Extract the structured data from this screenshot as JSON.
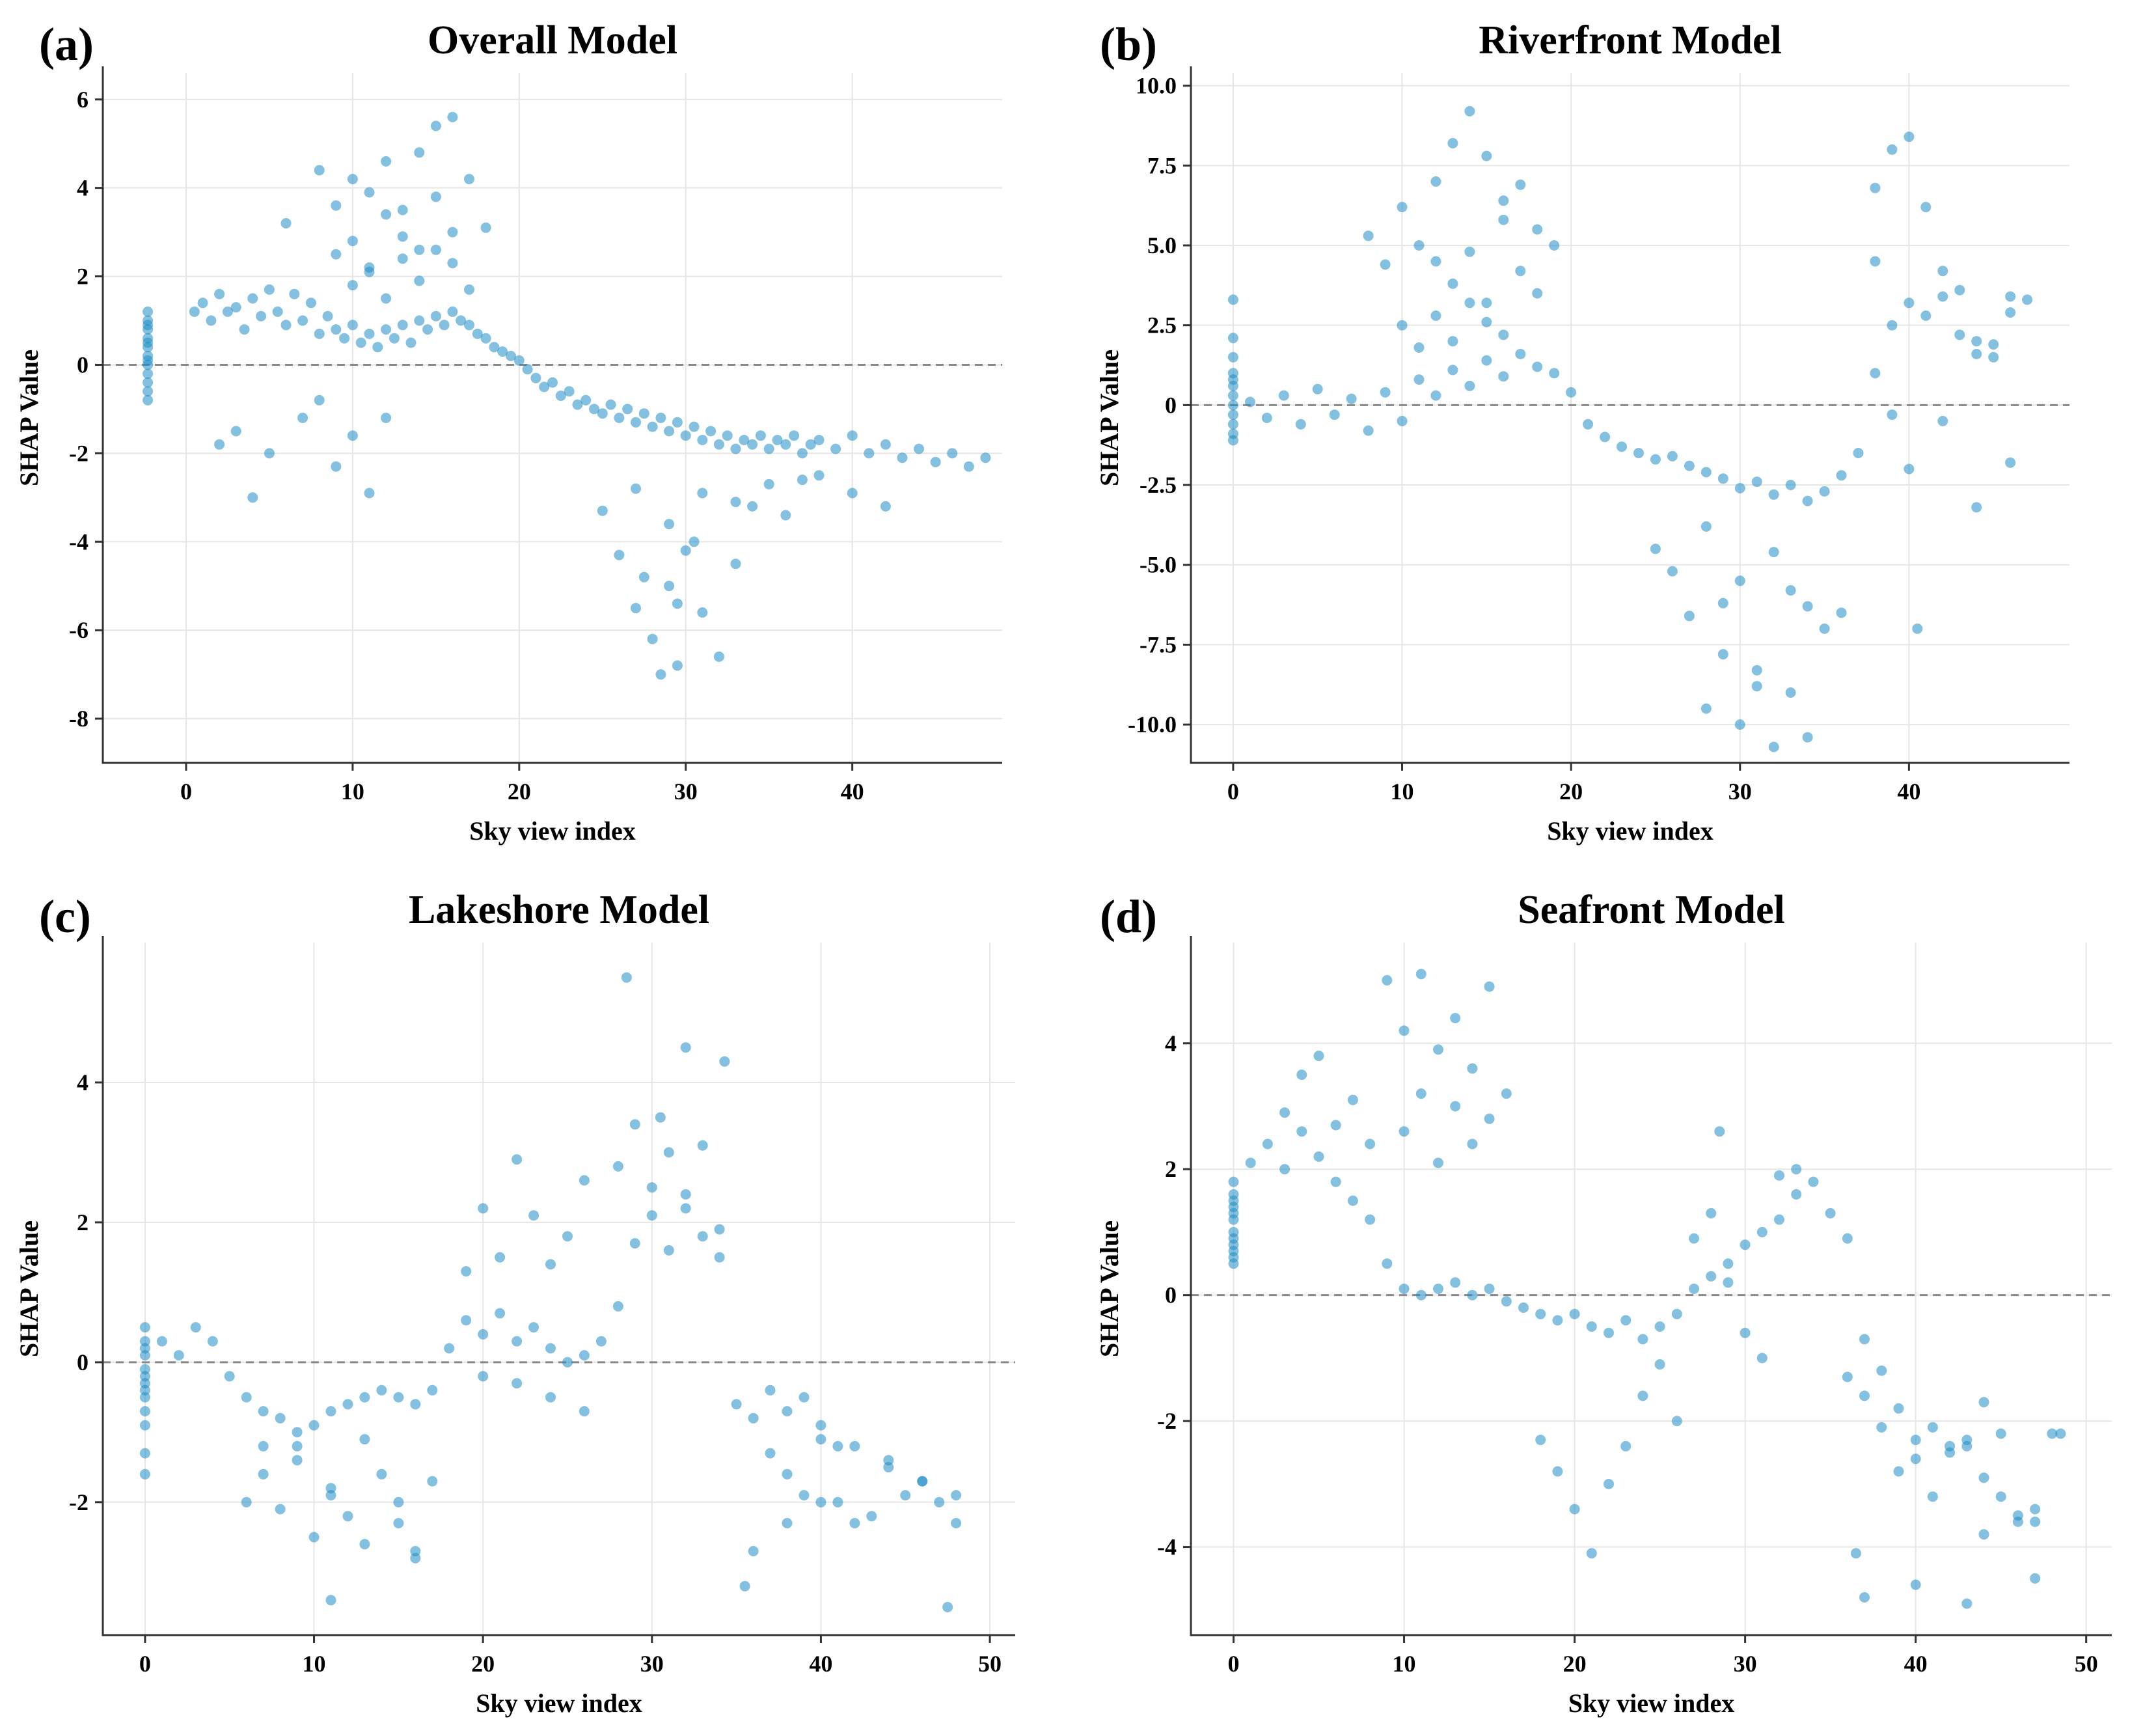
{
  "figure": {
    "point_color": "#1f8dc4"
  },
  "chart_data": [
    {
      "type": "scatter",
      "panel_label": "(a)",
      "title": "Overall Model",
      "xlabel": "Sky view index",
      "ylabel": "SHAP Value",
      "xlim": [
        -5,
        49
      ],
      "ylim": [
        -9,
        6.6
      ],
      "xticks": [
        0,
        10,
        20,
        30,
        40
      ],
      "yticks": [
        -8,
        -6,
        -4,
        -2,
        0,
        2,
        4,
        6
      ],
      "ytick_labels": [
        "-8",
        "-6",
        "-4",
        "-2",
        "0",
        "2",
        "4",
        "6"
      ],
      "grid": true,
      "reference_line_y": 0,
      "x": [
        -2.3,
        -2.3,
        -2.3,
        -2.3,
        -2.3,
        -2.3,
        -2.3,
        -2.3,
        -2.3,
        -2.3,
        -2.3,
        -2.3,
        -2.3,
        -2.3,
        0.5,
        1.0,
        1.5,
        2.0,
        2.5,
        3.0,
        3.5,
        4.0,
        4.5,
        5.0,
        5.5,
        6.0,
        6.5,
        7.0,
        7.5,
        8.0,
        8.5,
        9.0,
        9.5,
        10.0,
        10.5,
        11.0,
        11.5,
        12.0,
        12.5,
        13.0,
        13.5,
        14.0,
        14.5,
        15.0,
        15.5,
        16.0,
        16.5,
        17.0,
        17.5,
        18.0,
        18.5,
        19.0,
        19.5,
        20.0,
        20.5,
        21.0,
        21.5,
        22.0,
        22.5,
        23.0,
        23.5,
        24.0,
        24.5,
        25.0,
        25.5,
        26.0,
        26.5,
        27.0,
        27.5,
        28.0,
        28.5,
        29.0,
        29.5,
        30.0,
        30.5,
        31.0,
        31.5,
        32.0,
        32.5,
        33.0,
        33.5,
        34.0,
        34.5,
        35.0,
        35.5,
        36.0,
        36.5,
        37.0,
        37.5,
        38.0,
        39.0,
        40.0,
        41.0,
        42.0,
        43.0,
        44.0,
        45.0,
        46.0,
        47.0,
        48.0,
        6,
        8,
        9,
        10,
        11,
        12,
        13,
        14,
        15,
        16,
        17,
        18,
        9,
        10,
        11,
        12,
        13,
        14,
        15,
        16,
        10,
        11,
        12,
        13,
        14,
        15,
        16,
        17,
        3,
        5,
        7,
        9,
        11,
        2,
        4,
        8,
        10,
        12,
        26,
        27,
        28,
        28.5,
        29,
        29.5,
        30,
        31,
        32,
        33,
        25,
        27,
        29,
        31,
        33,
        35,
        37,
        40,
        42,
        38,
        36,
        34,
        30.5,
        27.5,
        29.5
      ],
      "y": [
        1.2,
        1.0,
        0.8,
        0.6,
        0.4,
        0.2,
        0.0,
        -0.2,
        -0.4,
        -0.6,
        -0.8,
        0.9,
        0.5,
        0.1,
        1.2,
        1.4,
        1.0,
        1.6,
        1.2,
        1.3,
        0.8,
        1.5,
        1.1,
        1.7,
        1.2,
        0.9,
        1.6,
        1.0,
        1.4,
        0.7,
        1.1,
        0.8,
        0.6,
        0.9,
        0.5,
        0.7,
        0.4,
        0.8,
        0.6,
        0.9,
        0.5,
        1.0,
        0.8,
        1.1,
        0.9,
        1.2,
        1.0,
        0.9,
        0.7,
        0.6,
        0.4,
        0.3,
        0.2,
        0.1,
        -0.1,
        -0.3,
        -0.5,
        -0.4,
        -0.7,
        -0.6,
        -0.9,
        -0.8,
        -1.0,
        -1.1,
        -0.9,
        -1.2,
        -1.0,
        -1.3,
        -1.1,
        -1.4,
        -1.2,
        -1.5,
        -1.3,
        -1.6,
        -1.4,
        -1.7,
        -1.5,
        -1.8,
        -1.6,
        -1.9,
        -1.7,
        -1.8,
        -1.6,
        -1.9,
        -1.7,
        -1.8,
        -1.6,
        -2.0,
        -1.8,
        -1.7,
        -1.9,
        -1.6,
        -2.0,
        -1.8,
        -2.1,
        -1.9,
        -2.2,
        -2.0,
        -2.3,
        -2.1,
        3.2,
        4.4,
        3.6,
        4.2,
        3.9,
        4.6,
        3.5,
        4.8,
        5.4,
        5.6,
        4.2,
        3.1,
        2.5,
        2.8,
        2.2,
        3.4,
        2.9,
        2.6,
        3.8,
        3.0,
        1.8,
        2.1,
        1.5,
        2.4,
        1.9,
        2.6,
        2.3,
        1.7,
        -1.5,
        -2.0,
        -1.2,
        -2.3,
        -2.9,
        -1.8,
        -3.0,
        -0.8,
        -1.6,
        -1.2,
        -4.3,
        -5.5,
        -6.2,
        -7.0,
        -5.0,
        -6.8,
        -4.2,
        -5.6,
        -6.6,
        -4.5,
        -3.3,
        -2.8,
        -3.6,
        -2.9,
        -3.1,
        -2.7,
        -2.6,
        -2.9,
        -3.2,
        -2.5,
        -3.4,
        -3.2,
        -4.0,
        -4.8,
        -5.4
      ]
    },
    {
      "type": "scatter",
      "panel_label": "(b)",
      "title": "Riverfront Model",
      "xlabel": "Sky view index",
      "ylabel": "SHAP Value",
      "xlim": [
        -2.5,
        49.5
      ],
      "ylim": [
        -11.2,
        10.4
      ],
      "xticks": [
        0,
        10,
        20,
        30,
        40
      ],
      "yticks": [
        -10.0,
        -7.5,
        -5.0,
        -2.5,
        0,
        2.5,
        5.0,
        7.5,
        10.0
      ],
      "ytick_labels": [
        "-10.0",
        "-7.5",
        "-5.0",
        "-2.5",
        "0",
        "2.5",
        "5.0",
        "7.5",
        "10.0"
      ],
      "grid": true,
      "reference_line_y": 0,
      "x": [
        0,
        0,
        0,
        0,
        0,
        0,
        0,
        0,
        0,
        0,
        0,
        0,
        1,
        2,
        3,
        4,
        5,
        6,
        7,
        8,
        9,
        10,
        11,
        12,
        13,
        14,
        15,
        16,
        17,
        18,
        19,
        20,
        21,
        22,
        23,
        24,
        25,
        26,
        27,
        28,
        29,
        30,
        31,
        32,
        33,
        34,
        35,
        36,
        37,
        38,
        39,
        40,
        41,
        42,
        43,
        44,
        45,
        46,
        47,
        10,
        11,
        12,
        13,
        14,
        15,
        16,
        17,
        18,
        12,
        13,
        14,
        15,
        16,
        17,
        18,
        19,
        8,
        9,
        10,
        11,
        12,
        13,
        14,
        15,
        16,
        25,
        26,
        27,
        28,
        29,
        30,
        31,
        32,
        33,
        34,
        35,
        36,
        28,
        29,
        30,
        31,
        32,
        33,
        34,
        38,
        39,
        40,
        41,
        42,
        43,
        44,
        45,
        46,
        40,
        42,
        44,
        46,
        38,
        39,
        40.5
      ],
      "y": [
        3.3,
        2.1,
        1.5,
        1.0,
        0.6,
        0.3,
        0.0,
        -0.3,
        -0.6,
        -0.9,
        -1.1,
        0.8,
        0.1,
        -0.4,
        0.3,
        -0.6,
        0.5,
        -0.3,
        0.2,
        -0.8,
        0.4,
        -0.5,
        0.8,
        0.3,
        1.1,
        0.6,
        1.4,
        0.9,
        1.6,
        1.2,
        1.0,
        0.4,
        -0.6,
        -1.0,
        -1.3,
        -1.5,
        -1.7,
        -1.6,
        -1.9,
        -2.1,
        -2.3,
        -2.6,
        -2.4,
        -2.8,
        -2.5,
        -3.0,
        -2.7,
        -2.2,
        -1.5,
        1.0,
        2.5,
        3.2,
        2.8,
        3.4,
        2.2,
        1.6,
        1.9,
        2.9,
        3.3,
        6.2,
        5.0,
        7.0,
        8.2,
        9.2,
        7.8,
        6.4,
        6.9,
        5.5,
        4.5,
        3.8,
        4.8,
        3.2,
        5.8,
        4.2,
        3.5,
        5.0,
        5.3,
        4.4,
        2.5,
        1.8,
        2.8,
        2.0,
        3.2,
        2.6,
        2.2,
        -4.5,
        -5.2,
        -6.6,
        -3.8,
        -7.8,
        -5.5,
        -8.8,
        -4.6,
        -9.0,
        -10.4,
        -7.0,
        -6.5,
        -9.5,
        -6.2,
        -10.0,
        -8.3,
        -10.7,
        -5.8,
        -6.3,
        6.8,
        8.0,
        8.4,
        6.2,
        4.2,
        3.6,
        2.0,
        1.5,
        3.4,
        -2.0,
        -0.5,
        -3.2,
        -1.8,
        4.5,
        -0.3,
        -7.0
      ]
    },
    {
      "type": "scatter",
      "panel_label": "(c)",
      "title": "Lakeshore Model",
      "xlabel": "Sky view index",
      "ylabel": "SHAP Value",
      "xlim": [
        -2.5,
        51.5
      ],
      "ylim": [
        -3.9,
        6.0
      ],
      "xticks": [
        0,
        10,
        20,
        30,
        40,
        50
      ],
      "yticks": [
        -2,
        0,
        2,
        4
      ],
      "ytick_labels": [
        "-2",
        "0",
        "2",
        "4"
      ],
      "grid": true,
      "reference_line_y": 0,
      "x": [
        0,
        0,
        0,
        0,
        0,
        0,
        0,
        0,
        0,
        0,
        0,
        0,
        0,
        1,
        2,
        3,
        4,
        5,
        6,
        7,
        8,
        9,
        10,
        11,
        12,
        13,
        14,
        15,
        16,
        17,
        18,
        19,
        20,
        21,
        22,
        23,
        24,
        25,
        26,
        27,
        28,
        29,
        30,
        31,
        32,
        33,
        34,
        35,
        36,
        37,
        38,
        39,
        40,
        41,
        42,
        43,
        44,
        45,
        46,
        47,
        48,
        6,
        7,
        8,
        9,
        10,
        11,
        12,
        13,
        14,
        15,
        16,
        7,
        9,
        11,
        13,
        15,
        17,
        19,
        20,
        21,
        22,
        23,
        24,
        25,
        26,
        20,
        22,
        24,
        26,
        28,
        29,
        30,
        31,
        32,
        33,
        34,
        28.5,
        30.5,
        32,
        34.3,
        37,
        38,
        39,
        40,
        41,
        36,
        38,
        40,
        42,
        44,
        46,
        48,
        35.5,
        47.5,
        11,
        16
      ],
      "y": [
        0.5,
        0.3,
        0.1,
        -0.1,
        -0.3,
        -0.5,
        -0.7,
        -0.9,
        0.2,
        -0.2,
        -1.3,
        -1.6,
        -0.4,
        0.3,
        0.1,
        0.5,
        0.3,
        -0.2,
        -0.5,
        -0.7,
        -0.8,
        -1.0,
        -0.9,
        -0.7,
        -0.6,
        -0.5,
        -0.4,
        -0.5,
        -0.6,
        -0.4,
        0.2,
        0.6,
        0.4,
        0.7,
        0.3,
        0.5,
        0.2,
        0.0,
        0.1,
        0.3,
        0.8,
        1.7,
        2.1,
        1.6,
        2.4,
        1.8,
        1.5,
        -0.6,
        -0.8,
        -1.3,
        -1.6,
        -1.9,
        -1.1,
        -2.0,
        -2.3,
        -2.2,
        -1.5,
        -1.9,
        -1.7,
        -2.0,
        -2.3,
        -2.0,
        -1.6,
        -2.1,
        -1.2,
        -2.5,
        -1.8,
        -2.2,
        -2.6,
        -1.6,
        -2.3,
        -2.7,
        -1.2,
        -1.4,
        -1.9,
        -1.1,
        -2.0,
        -1.7,
        1.3,
        2.2,
        1.5,
        2.9,
        2.1,
        1.4,
        1.8,
        2.6,
        -0.2,
        -0.3,
        -0.5,
        -0.7,
        2.8,
        3.4,
        2.5,
        3.0,
        2.2,
        3.1,
        1.9,
        5.5,
        3.5,
        4.5,
        4.3,
        -0.4,
        -0.7,
        -0.5,
        -0.9,
        -1.2,
        -2.7,
        -2.3,
        -2.0,
        -1.2,
        -1.4,
        -1.7,
        -1.9,
        -3.2,
        -3.5,
        -3.4,
        -2.8
      ]
    },
    {
      "type": "scatter",
      "panel_label": "(d)",
      "title": "Seafront Model",
      "xlabel": "Sky view index",
      "ylabel": "SHAP Value",
      "xlim": [
        -2.5,
        51.5
      ],
      "ylim": [
        -5.4,
        5.6
      ],
      "xticks": [
        0,
        10,
        20,
        30,
        40,
        50
      ],
      "yticks": [
        -4,
        -2,
        0,
        2,
        4
      ],
      "ytick_labels": [
        "-4",
        "-2",
        "0",
        "2",
        "4"
      ],
      "grid": true,
      "reference_line_y": 0,
      "x": [
        0,
        0,
        0,
        0,
        0,
        0,
        0,
        0,
        0,
        0,
        0,
        0,
        1,
        2,
        3,
        4,
        5,
        6,
        7,
        8,
        9,
        10,
        11,
        12,
        13,
        14,
        15,
        16,
        17,
        18,
        19,
        20,
        21,
        22,
        23,
        24,
        25,
        26,
        27,
        28,
        29,
        30,
        31,
        32,
        33,
        34,
        35,
        36,
        37,
        38,
        39,
        40,
        41,
        42,
        43,
        44,
        45,
        46,
        47,
        48,
        9,
        10,
        11,
        12,
        13,
        14,
        15,
        16,
        10,
        11,
        12,
        13,
        14,
        15,
        3,
        4,
        5,
        6,
        7,
        8,
        18,
        19,
        20,
        21,
        22,
        23,
        24,
        25,
        26,
        27,
        28,
        29,
        30,
        31,
        32,
        33,
        28.5,
        36,
        37,
        38,
        39,
        40,
        41,
        42,
        43,
        44,
        45,
        46,
        47,
        48.5,
        37,
        40,
        44,
        47,
        43,
        36.5
      ],
      "y": [
        1.8,
        1.6,
        1.4,
        1.2,
        1.0,
        0.8,
        0.6,
        0.5,
        1.3,
        0.9,
        1.5,
        0.7,
        2.1,
        2.4,
        2.0,
        2.6,
        2.2,
        1.8,
        1.5,
        1.2,
        0.5,
        0.1,
        0.0,
        0.1,
        0.2,
        0.0,
        0.1,
        -0.1,
        -0.2,
        -0.3,
        -0.4,
        -0.3,
        -0.5,
        -0.6,
        -0.4,
        -0.7,
        -0.5,
        -0.3,
        0.1,
        0.3,
        0.5,
        0.8,
        1.0,
        1.2,
        1.6,
        1.8,
        1.3,
        0.9,
        -0.7,
        -1.2,
        -1.8,
        -2.3,
        -2.1,
        -2.5,
        -2.4,
        -2.9,
        -3.2,
        -3.6,
        -3.4,
        -2.2,
        5.0,
        4.2,
        5.1,
        3.9,
        4.4,
        3.6,
        4.9,
        3.2,
        2.6,
        3.2,
        2.1,
        3.0,
        2.4,
        2.8,
        2.9,
        3.5,
        3.8,
        2.7,
        3.1,
        2.4,
        -2.3,
        -2.8,
        -3.4,
        -4.1,
        -3.0,
        -2.4,
        -1.6,
        -1.1,
        -2.0,
        0.9,
        1.3,
        0.2,
        -0.6,
        -1.0,
        1.9,
        2.0,
        2.6,
        -1.3,
        -1.6,
        -2.1,
        -2.8,
        -2.6,
        -3.2,
        -2.4,
        -2.3,
        -1.7,
        -2.2,
        -3.5,
        -3.6,
        -2.2,
        -4.8,
        -4.6,
        -3.8,
        -4.5,
        -4.9,
        -4.1
      ]
    }
  ]
}
